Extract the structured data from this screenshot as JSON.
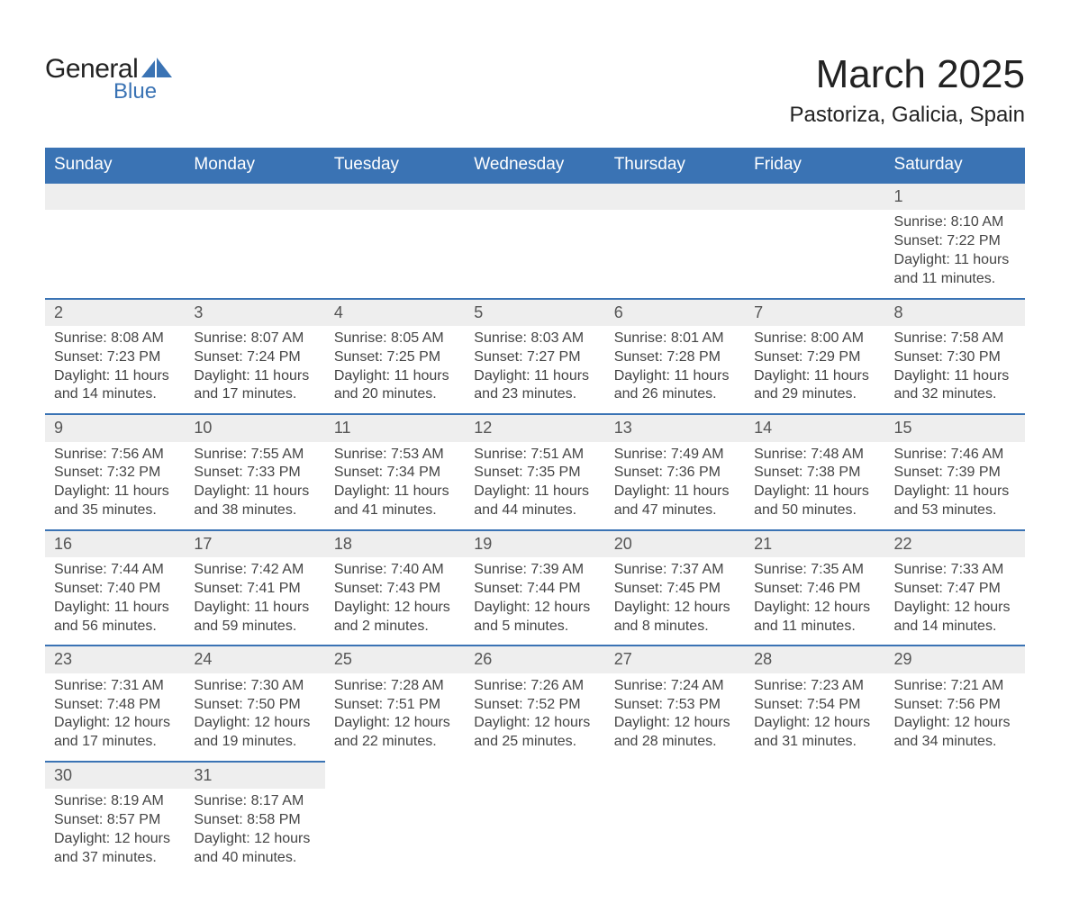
{
  "logo": {
    "text1": "General",
    "text2": "Blue",
    "accent_color": "#3a73b4"
  },
  "title": "March 2025",
  "location": "Pastoriza, Galicia, Spain",
  "colors": {
    "header_bg": "#3a73b4",
    "header_text": "#ffffff",
    "daynum_bg": "#eeeeee",
    "row_border": "#3a73b4",
    "body_text": "#444444"
  },
  "fonts": {
    "title_size": 44,
    "location_size": 24,
    "header_size": 19,
    "daynum_size": 18,
    "cell_size": 16
  },
  "day_headers": [
    "Sunday",
    "Monday",
    "Tuesday",
    "Wednesday",
    "Thursday",
    "Friday",
    "Saturday"
  ],
  "weeks": [
    [
      null,
      null,
      null,
      null,
      null,
      null,
      {
        "n": "1",
        "sr": "Sunrise: 8:10 AM",
        "ss": "Sunset: 7:22 PM",
        "d1": "Daylight: 11 hours",
        "d2": "and 11 minutes."
      }
    ],
    [
      {
        "n": "2",
        "sr": "Sunrise: 8:08 AM",
        "ss": "Sunset: 7:23 PM",
        "d1": "Daylight: 11 hours",
        "d2": "and 14 minutes."
      },
      {
        "n": "3",
        "sr": "Sunrise: 8:07 AM",
        "ss": "Sunset: 7:24 PM",
        "d1": "Daylight: 11 hours",
        "d2": "and 17 minutes."
      },
      {
        "n": "4",
        "sr": "Sunrise: 8:05 AM",
        "ss": "Sunset: 7:25 PM",
        "d1": "Daylight: 11 hours",
        "d2": "and 20 minutes."
      },
      {
        "n": "5",
        "sr": "Sunrise: 8:03 AM",
        "ss": "Sunset: 7:27 PM",
        "d1": "Daylight: 11 hours",
        "d2": "and 23 minutes."
      },
      {
        "n": "6",
        "sr": "Sunrise: 8:01 AM",
        "ss": "Sunset: 7:28 PM",
        "d1": "Daylight: 11 hours",
        "d2": "and 26 minutes."
      },
      {
        "n": "7",
        "sr": "Sunrise: 8:00 AM",
        "ss": "Sunset: 7:29 PM",
        "d1": "Daylight: 11 hours",
        "d2": "and 29 minutes."
      },
      {
        "n": "8",
        "sr": "Sunrise: 7:58 AM",
        "ss": "Sunset: 7:30 PM",
        "d1": "Daylight: 11 hours",
        "d2": "and 32 minutes."
      }
    ],
    [
      {
        "n": "9",
        "sr": "Sunrise: 7:56 AM",
        "ss": "Sunset: 7:32 PM",
        "d1": "Daylight: 11 hours",
        "d2": "and 35 minutes."
      },
      {
        "n": "10",
        "sr": "Sunrise: 7:55 AM",
        "ss": "Sunset: 7:33 PM",
        "d1": "Daylight: 11 hours",
        "d2": "and 38 minutes."
      },
      {
        "n": "11",
        "sr": "Sunrise: 7:53 AM",
        "ss": "Sunset: 7:34 PM",
        "d1": "Daylight: 11 hours",
        "d2": "and 41 minutes."
      },
      {
        "n": "12",
        "sr": "Sunrise: 7:51 AM",
        "ss": "Sunset: 7:35 PM",
        "d1": "Daylight: 11 hours",
        "d2": "and 44 minutes."
      },
      {
        "n": "13",
        "sr": "Sunrise: 7:49 AM",
        "ss": "Sunset: 7:36 PM",
        "d1": "Daylight: 11 hours",
        "d2": "and 47 minutes."
      },
      {
        "n": "14",
        "sr": "Sunrise: 7:48 AM",
        "ss": "Sunset: 7:38 PM",
        "d1": "Daylight: 11 hours",
        "d2": "and 50 minutes."
      },
      {
        "n": "15",
        "sr": "Sunrise: 7:46 AM",
        "ss": "Sunset: 7:39 PM",
        "d1": "Daylight: 11 hours",
        "d2": "and 53 minutes."
      }
    ],
    [
      {
        "n": "16",
        "sr": "Sunrise: 7:44 AM",
        "ss": "Sunset: 7:40 PM",
        "d1": "Daylight: 11 hours",
        "d2": "and 56 minutes."
      },
      {
        "n": "17",
        "sr": "Sunrise: 7:42 AM",
        "ss": "Sunset: 7:41 PM",
        "d1": "Daylight: 11 hours",
        "d2": "and 59 minutes."
      },
      {
        "n": "18",
        "sr": "Sunrise: 7:40 AM",
        "ss": "Sunset: 7:43 PM",
        "d1": "Daylight: 12 hours",
        "d2": "and 2 minutes."
      },
      {
        "n": "19",
        "sr": "Sunrise: 7:39 AM",
        "ss": "Sunset: 7:44 PM",
        "d1": "Daylight: 12 hours",
        "d2": "and 5 minutes."
      },
      {
        "n": "20",
        "sr": "Sunrise: 7:37 AM",
        "ss": "Sunset: 7:45 PM",
        "d1": "Daylight: 12 hours",
        "d2": "and 8 minutes."
      },
      {
        "n": "21",
        "sr": "Sunrise: 7:35 AM",
        "ss": "Sunset: 7:46 PM",
        "d1": "Daylight: 12 hours",
        "d2": "and 11 minutes."
      },
      {
        "n": "22",
        "sr": "Sunrise: 7:33 AM",
        "ss": "Sunset: 7:47 PM",
        "d1": "Daylight: 12 hours",
        "d2": "and 14 minutes."
      }
    ],
    [
      {
        "n": "23",
        "sr": "Sunrise: 7:31 AM",
        "ss": "Sunset: 7:48 PM",
        "d1": "Daylight: 12 hours",
        "d2": "and 17 minutes."
      },
      {
        "n": "24",
        "sr": "Sunrise: 7:30 AM",
        "ss": "Sunset: 7:50 PM",
        "d1": "Daylight: 12 hours",
        "d2": "and 19 minutes."
      },
      {
        "n": "25",
        "sr": "Sunrise: 7:28 AM",
        "ss": "Sunset: 7:51 PM",
        "d1": "Daylight: 12 hours",
        "d2": "and 22 minutes."
      },
      {
        "n": "26",
        "sr": "Sunrise: 7:26 AM",
        "ss": "Sunset: 7:52 PM",
        "d1": "Daylight: 12 hours",
        "d2": "and 25 minutes."
      },
      {
        "n": "27",
        "sr": "Sunrise: 7:24 AM",
        "ss": "Sunset: 7:53 PM",
        "d1": "Daylight: 12 hours",
        "d2": "and 28 minutes."
      },
      {
        "n": "28",
        "sr": "Sunrise: 7:23 AM",
        "ss": "Sunset: 7:54 PM",
        "d1": "Daylight: 12 hours",
        "d2": "and 31 minutes."
      },
      {
        "n": "29",
        "sr": "Sunrise: 7:21 AM",
        "ss": "Sunset: 7:56 PM",
        "d1": "Daylight: 12 hours",
        "d2": "and 34 minutes."
      }
    ],
    [
      {
        "n": "30",
        "sr": "Sunrise: 8:19 AM",
        "ss": "Sunset: 8:57 PM",
        "d1": "Daylight: 12 hours",
        "d2": "and 37 minutes."
      },
      {
        "n": "31",
        "sr": "Sunrise: 8:17 AM",
        "ss": "Sunset: 8:58 PM",
        "d1": "Daylight: 12 hours",
        "d2": "and 40 minutes."
      },
      null,
      null,
      null,
      null,
      null
    ]
  ]
}
